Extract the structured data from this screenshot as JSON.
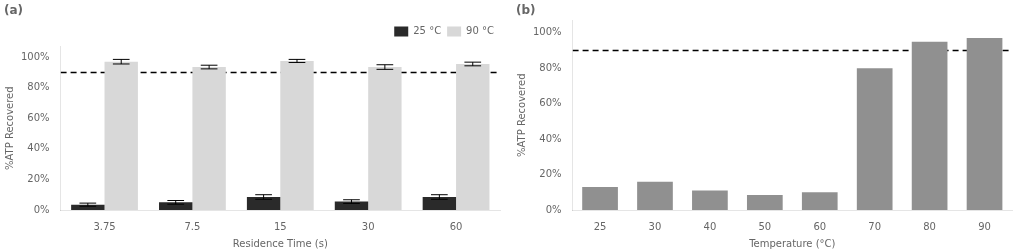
{
  "chart_data": [
    {
      "type": "bar",
      "title": "(a)",
      "x_label": "Residence Time (s)",
      "y_label": "%ATP Recovered",
      "categories": [
        "3.75",
        "7.5",
        "15",
        "30",
        "60"
      ],
      "series": [
        {
          "name": "25 °C",
          "color": "#2a2a2a",
          "values": [
            3.5,
            5.0,
            8.5,
            5.5,
            8.5
          ],
          "errors": [
            1.0,
            1.2,
            1.5,
            1.2,
            1.5
          ]
        },
        {
          "name": "90 °C",
          "color": "#d8d8d8",
          "values": [
            97.0,
            93.5,
            97.5,
            93.5,
            95.5
          ],
          "errors": [
            1.5,
            1.2,
            1.0,
            1.5,
            1.2
          ]
        }
      ],
      "reference_line": 90,
      "ylim": [
        0,
        107
      ],
      "yticks": [
        {
          "value": 0,
          "label": "0%"
        },
        {
          "value": 20,
          "label": "20%"
        },
        {
          "value": 40,
          "label": "40%"
        },
        {
          "value": 60,
          "label": "60%"
        },
        {
          "value": 80,
          "label": "80%"
        },
        {
          "value": 100,
          "label": "100%"
        }
      ],
      "grid": false,
      "legend": "upper right"
    },
    {
      "type": "bar",
      "title": "(b)",
      "x_label": "Temperature (°C)",
      "y_label": "%ATP Recovered",
      "categories": [
        "25",
        "30",
        "40",
        "50",
        "60",
        "70",
        "80",
        "90"
      ],
      "values": [
        13.0,
        16.0,
        11.0,
        8.5,
        10.0,
        80.0,
        95.0,
        97.0
      ],
      "color": "#909090",
      "reference_line": 90,
      "ylim": [
        0,
        107
      ],
      "yticks": [
        {
          "value": 0,
          "label": "0%"
        },
        {
          "value": 20,
          "label": "20%"
        },
        {
          "value": 40,
          "label": "40%"
        },
        {
          "value": 60,
          "label": "60%"
        },
        {
          "value": 80,
          "label": "80%"
        },
        {
          "value": 100,
          "label": "100%"
        }
      ],
      "grid": false
    }
  ]
}
